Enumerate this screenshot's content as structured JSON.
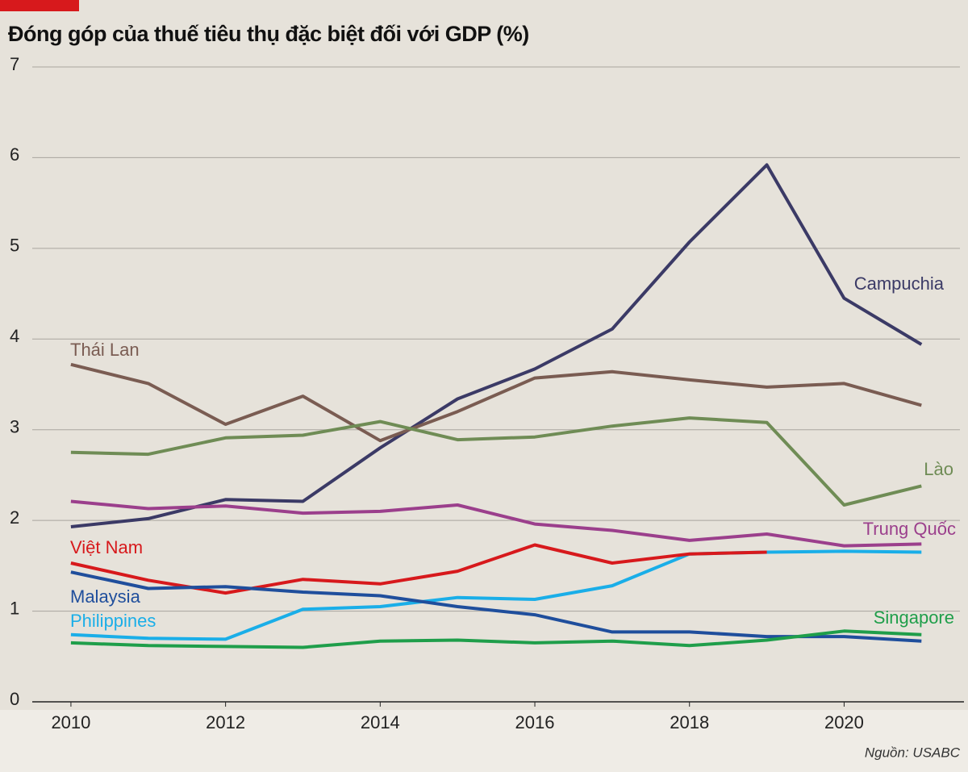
{
  "chart_data": {
    "type": "line",
    "title": "Đóng góp của thuế tiêu thụ đặc biệt đối với GDP (%)",
    "source": "Nguồn: USABC",
    "x": [
      2010,
      2011,
      2012,
      2013,
      2014,
      2015,
      2016,
      2017,
      2018,
      2019,
      2020,
      2021
    ],
    "xlim": [
      2009.5,
      2021.55
    ],
    "xticks": [
      2010,
      2012,
      2014,
      2016,
      2018,
      2020
    ],
    "ylim": [
      0,
      7
    ],
    "yticks": [
      0,
      1,
      2,
      3,
      4,
      5,
      6,
      7
    ],
    "grid": true,
    "series": [
      {
        "name": "Campuchia",
        "color": "#3b3a66",
        "values": [
          1.93,
          2.02,
          2.23,
          2.21,
          2.8,
          3.34,
          3.67,
          4.11,
          5.07,
          5.92,
          4.45,
          3.94
        ]
      },
      {
        "name": "Thái Lan",
        "color": "#7a5c52",
        "values": [
          3.72,
          3.51,
          3.06,
          3.37,
          2.88,
          3.2,
          3.57,
          3.64,
          3.55,
          3.47,
          3.51,
          3.27
        ]
      },
      {
        "name": "Lào",
        "color": "#6f8c55",
        "values": [
          2.75,
          2.73,
          2.91,
          2.94,
          3.09,
          2.89,
          2.92,
          3.04,
          3.13,
          3.08,
          2.17,
          2.38
        ]
      },
      {
        "name": "Trung Quốc",
        "color": "#9b3f8c",
        "values": [
          2.21,
          2.13,
          2.16,
          2.08,
          2.1,
          2.17,
          1.96,
          1.89,
          1.78,
          1.85,
          1.72,
          1.74
        ]
      },
      {
        "name": "Philippines",
        "color": "#1aaee8",
        "values": [
          0.74,
          0.7,
          0.69,
          1.02,
          1.05,
          1.15,
          1.13,
          1.28,
          1.63,
          1.65,
          1.66,
          1.65
        ]
      },
      {
        "name": "Việt Nam",
        "color": "#d7191c",
        "values": [
          1.53,
          1.34,
          1.2,
          1.35,
          1.3,
          1.44,
          1.73,
          1.53,
          1.63,
          1.65,
          null,
          null
        ]
      },
      {
        "name": "Malaysia",
        "color": "#1f4e9c",
        "values": [
          1.43,
          1.25,
          1.27,
          1.21,
          1.17,
          1.05,
          0.96,
          0.77,
          0.77,
          0.72,
          0.72,
          0.67
        ]
      },
      {
        "name": "Singapore",
        "color": "#1f9e4a",
        "values": [
          0.65,
          0.62,
          0.61,
          0.6,
          0.67,
          0.68,
          0.65,
          0.67,
          0.62,
          0.68,
          0.78,
          0.74
        ]
      }
    ]
  }
}
